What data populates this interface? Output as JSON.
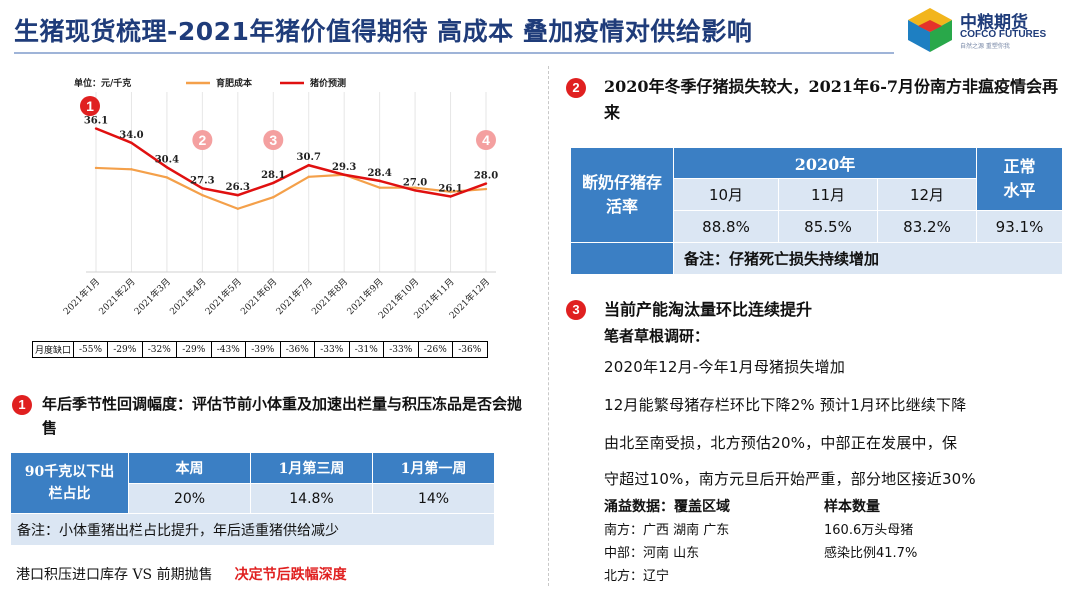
{
  "title": "生猪现货梳理-2021年猪价值得期待 高成本 叠加疫情对供给影响",
  "logo": {
    "name_cn": "中粮期货",
    "name_en": "COFCO FUTURES",
    "tagline": "自然之源 重塑你我"
  },
  "chart_data": {
    "type": "line",
    "unit_label": "单位：元/千克",
    "categories": [
      "2021年1月",
      "2021年2月",
      "2021年3月",
      "2021年4月",
      "2021年5月",
      "2021年6月",
      "2021年7月",
      "2021年8月",
      "2021年9月",
      "2021年10月",
      "2021年11月",
      "2021年12月"
    ],
    "series": [
      {
        "name": "育肥成本",
        "color": "#f4a04a",
        "values": [
          30.3,
          30.1,
          28.9,
          26.3,
          24.3,
          26.0,
          29.0,
          29.3,
          27.4,
          27.4,
          26.8,
          27.2
        ]
      },
      {
        "name": "猪价预测",
        "color": "#e01010",
        "values": [
          36.1,
          34.0,
          30.4,
          27.3,
          26.3,
          28.1,
          30.7,
          29.3,
          28.4,
          27.0,
          26.1,
          28.0
        ]
      }
    ],
    "data_labels": [
      "36.1",
      "34.0",
      "30.4",
      "27.3",
      "26.3",
      "28.1",
      "30.7",
      "29.3",
      "28.4",
      "27.0",
      "26.1",
      "28.0"
    ],
    "ylim": [
      15,
      40
    ],
    "markers": [
      {
        "label": "1",
        "at_index": 0,
        "filled": true
      },
      {
        "label": "2",
        "at_index": 3,
        "filled": false
      },
      {
        "label": "3",
        "at_index": 5,
        "filled": false
      },
      {
        "label": "4",
        "at_index": 11,
        "filled": false
      }
    ],
    "marker_colors": {
      "filled": "#e02020",
      "faded": "#f4a0a0"
    }
  },
  "monthly_gap": {
    "label": "月度缺口",
    "values": [
      "-55%",
      "-29%",
      "-32%",
      "-29%",
      "-43%",
      "-39%",
      "-36%",
      "-33%",
      "-31%",
      "-33%",
      "-26%",
      "-36%"
    ]
  },
  "section1": {
    "number": "1",
    "heading": "年后季节性回调幅度：评估节前小体重及加速出栏量与积压冻品是否会抛售",
    "table": {
      "row_header": "90千克以下出栏占比",
      "columns": [
        "本周",
        "1月第三周",
        "1月第一周"
      ],
      "values": [
        "20%",
        "14.8%",
        "14%"
      ],
      "note": "备注：小体重猪出栏占比提升，年后适重猪供给减少"
    },
    "footer": "港口积压进口库存 VS 前期抛售",
    "footer_highlight": "决定节后跌幅深度"
  },
  "section2": {
    "number": "2",
    "heading": "2020年冬季仔猪损失较大，2021年6-7月份南方非瘟疫情会再来",
    "table": {
      "row_header": "断奶仔猪存活率",
      "year_header": "2020年",
      "normal_header": "正常水平",
      "months": [
        "10月",
        "11月",
        "12月"
      ],
      "values": [
        "88.8%",
        "85.5%",
        "83.2%"
      ],
      "normal_value": "93.1%",
      "note": "备注：仔猪死亡损失持续增加"
    }
  },
  "section3": {
    "number": "3",
    "heading": "当前产能淘汰量环比连续提升",
    "subheading": "笔者草根调研：",
    "lines": [
      "2020年12月-今年1月母猪损失增加",
      "12月能繁母猪存栏环比下降2% 预计1月环比继续下降",
      "由北至南受损，北方预估20%，中部正在发展中，保",
      "守超过10%，南方元旦后开始严重，部分地区接近30%"
    ],
    "coverage_header": {
      "left": "涌益数据：覆盖区域",
      "right": "样本数量"
    },
    "coverage_rows": [
      {
        "left": "南方：广西 湖南 广东",
        "right": "160.6万头母猪"
      },
      {
        "left": "中部：河南 山东",
        "right": "感染比例41.7%"
      },
      {
        "left": "北方：辽宁",
        "right": ""
      }
    ]
  },
  "colors": {
    "title": "#1f3c7a",
    "table_header": "#3b7fc4",
    "table_body": "#dbe6f3",
    "accent_red": "#e02020"
  }
}
